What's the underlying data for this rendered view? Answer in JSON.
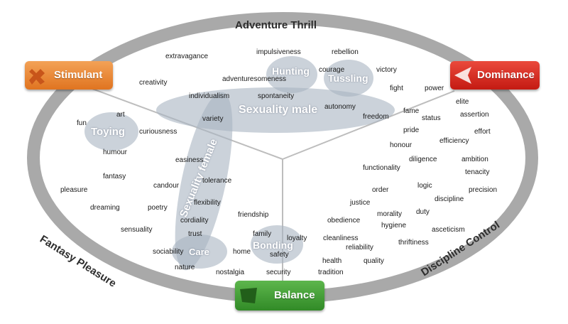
{
  "ring_labels": {
    "top": "Adventure Thrill",
    "left": "Fantasy Pleasure",
    "right": "Discipline Control"
  },
  "badges": {
    "stimulant": {
      "label": "Stimulant",
      "color": "#e8822a",
      "icon": "brain-icon"
    },
    "dominance": {
      "label": "Dominance",
      "color": "#d8241c",
      "icon": "arrow-left-icon"
    },
    "balance": {
      "label": "Balance",
      "color": "#3f9a33",
      "icon": "flag-icon"
    }
  },
  "clusters": {
    "hunting": "Hunting",
    "tussling": "Tussling",
    "sexuality_male": "Sexuality male",
    "sexuality_female": "Sexuality female",
    "toying": "Toying",
    "care": "Care",
    "bonding": "Bonding"
  },
  "words": {
    "extravagance": "extravagance",
    "impulsiveness": "impulsiveness",
    "rebellion": "rebellion",
    "creativity": "creativity",
    "adventuresomeness": "adventuresomeness",
    "courage": "courage",
    "victory": "victory",
    "individualism": "individualism",
    "spontaneity": "spontaneity",
    "fight": "fight",
    "power": "power",
    "elite": "elite",
    "autonomy": "autonomy",
    "fame": "fame",
    "assertion": "assertion",
    "art": "art",
    "fun": "fun",
    "variety": "variety",
    "freedom": "freedom",
    "status": "status",
    "curiousness": "curiousness",
    "pride": "pride",
    "effort": "effort",
    "efficiency": "efficiency",
    "honour": "honour",
    "humour": "humour",
    "easiness": "easiness",
    "diligence": "diligence",
    "ambition": "ambition",
    "functionality": "functionality",
    "tenacity": "tenacity",
    "fantasy": "fantasy",
    "tolerance": "tolerance",
    "candour": "candour",
    "logic": "logic",
    "pleasure": "pleasure",
    "order": "order",
    "precision": "precision",
    "discipline": "discipline",
    "flexibility": "flexibility",
    "justice": "justice",
    "dreaming": "dreaming",
    "poetry": "poetry",
    "duty": "duty",
    "morality": "morality",
    "friendship": "friendship",
    "cordiality": "cordiality",
    "obedience": "obedience",
    "hygiene": "hygiene",
    "sensuality": "sensuality",
    "asceticism": "asceticism",
    "trust": "trust",
    "family": "family",
    "loyalty": "loyalty",
    "cleanliness": "cleanliness",
    "thriftiness": "thriftiness",
    "reliability": "reliability",
    "sociability": "sociability",
    "home": "home",
    "safety": "safety",
    "health": "health",
    "quality": "quality",
    "nature": "nature",
    "nostalgia": "nostalgia",
    "security": "security",
    "tradition": "tradition"
  }
}
